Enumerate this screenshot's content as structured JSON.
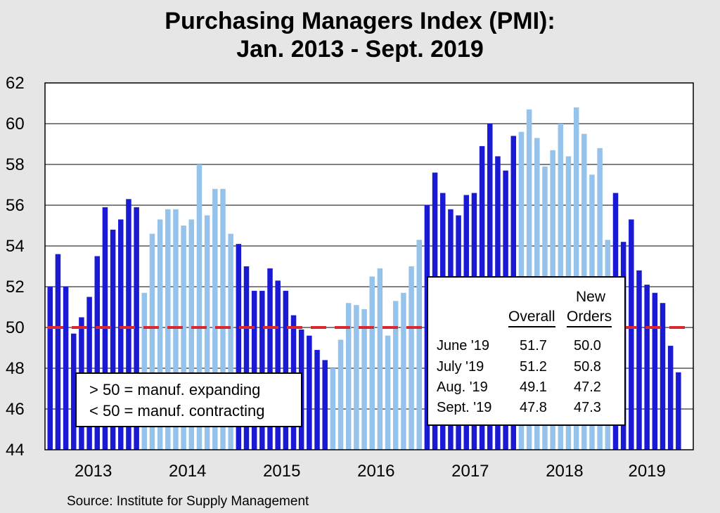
{
  "chart_data": {
    "type": "bar",
    "title": [
      "Purchasing Managers Index (PMI):",
      "Jan. 2013 - Sept. 2019"
    ],
    "ylim": [
      44,
      62
    ],
    "yticks": [
      "44",
      "46",
      "48",
      "50",
      "52",
      "54",
      "56",
      "58",
      "60",
      "62"
    ],
    "grid": "horizontal",
    "reference_line": {
      "value": 50,
      "style": "dashed",
      "color": "#d9282f"
    },
    "years": [
      "2013",
      "2014",
      "2015",
      "2016",
      "2017",
      "2018",
      "2019"
    ],
    "series": [
      {
        "values": [
          52.0,
          53.6,
          52.0,
          49.7,
          50.5,
          51.5,
          53.5,
          55.9,
          54.8,
          55.3,
          56.3,
          55.9,
          51.7,
          54.6,
          55.3,
          55.8,
          55.8,
          55.0,
          55.3,
          58.0,
          55.5,
          56.8,
          56.8,
          54.6,
          54.1,
          53.0,
          51.8,
          51.8,
          52.9,
          52.3,
          51.8,
          50.6,
          49.9,
          49.6,
          48.9,
          48.4,
          48.0,
          49.4,
          51.2,
          51.1,
          50.9,
          52.5,
          52.9,
          49.6,
          51.3,
          51.7,
          53.0,
          54.3,
          56.0,
          57.6,
          56.6,
          55.8,
          55.5,
          56.5,
          56.6,
          58.9,
          60.0,
          58.4,
          57.7,
          59.4,
          59.6,
          60.7,
          59.3,
          57.9,
          58.7,
          60.0,
          58.4,
          60.8,
          59.5,
          57.5,
          58.8,
          54.3,
          56.6,
          54.2,
          55.3,
          52.8,
          52.1,
          51.7,
          51.2,
          49.1,
          47.8
        ]
      }
    ],
    "colors": {
      "dark": "#1a1ad4",
      "light": "#96c3eb",
      "reference": "#d9282f",
      "plot_bg": "#ffffff"
    },
    "legend": {
      "lines": [
        "> 50 = manuf. expanding",
        "< 50 = manuf. contracting"
      ],
      "placement": "bottom-left"
    },
    "table": {
      "placement": "bottom-right",
      "headers": {
        "new": "New",
        "overall": "Overall",
        "orders": "Orders"
      },
      "rows": [
        {
          "month": "June '19",
          "overall": "51.7",
          "new_orders": "50.0"
        },
        {
          "month": "July '19",
          "overall": "51.2",
          "new_orders": "50.8"
        },
        {
          "month": "Aug. '19",
          "overall": "49.1",
          "new_orders": "47.2"
        },
        {
          "month": "Sept. '19",
          "overall": "47.8",
          "new_orders": "47.3"
        }
      ]
    },
    "source": "Source: Institute for Supply Management"
  }
}
